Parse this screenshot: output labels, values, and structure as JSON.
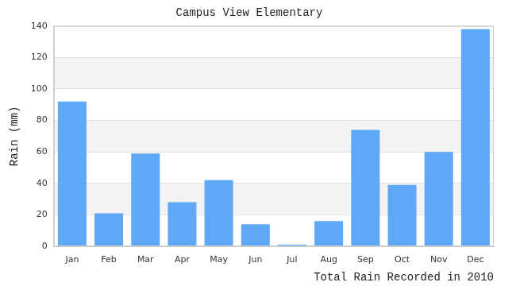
{
  "chart_data": {
    "type": "bar",
    "title": "Campus View Elementary",
    "xlabel": "Total Rain Recorded in 2010",
    "ylabel": "Rain (mm)",
    "categories": [
      "Jan",
      "Feb",
      "Mar",
      "Apr",
      "May",
      "Jun",
      "Jul",
      "Aug",
      "Sep",
      "Oct",
      "Nov",
      "Dec"
    ],
    "values": [
      92,
      21,
      59,
      28,
      42,
      14,
      1,
      16,
      74,
      39,
      60,
      138
    ],
    "color": "#5fa8f5",
    "ylim": [
      0,
      140
    ],
    "yticks": [
      0,
      20,
      40,
      60,
      80,
      100,
      120,
      140
    ],
    "grid": true
  }
}
